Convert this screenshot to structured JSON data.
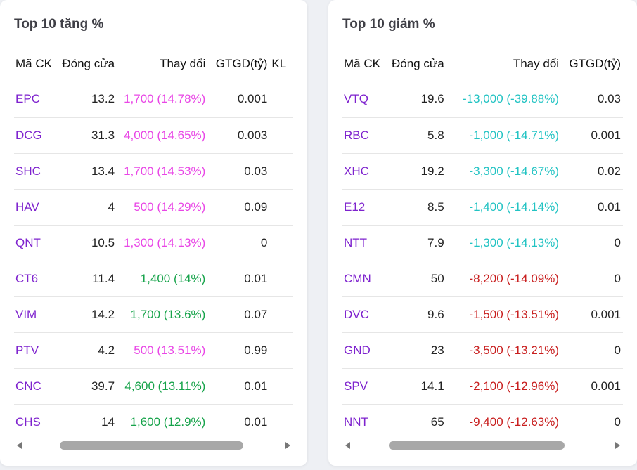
{
  "left_panel": {
    "title": "Top 10 tăng %",
    "headers": [
      "Mã CK",
      "Đóng cửa",
      "Thay đổi",
      "GTGD(tỷ)",
      "KL"
    ],
    "rows": [
      {
        "symbol": "EPC",
        "close": "13.2",
        "change": "1,700 (14.78%)",
        "value": "0.001",
        "status": "ceil"
      },
      {
        "symbol": "DCG",
        "close": "31.3",
        "change": "4,000 (14.65%)",
        "value": "0.003",
        "status": "ceil"
      },
      {
        "symbol": "SHC",
        "close": "13.4",
        "change": "1,700 (14.53%)",
        "value": "0.03",
        "status": "ceil"
      },
      {
        "symbol": "HAV",
        "close": "4",
        "change": "500 (14.29%)",
        "value": "0.09",
        "status": "ceil"
      },
      {
        "symbol": "QNT",
        "close": "10.5",
        "change": "1,300 (14.13%)",
        "value": "0",
        "status": "ceil"
      },
      {
        "symbol": "CT6",
        "close": "11.4",
        "change": "1,400 (14%)",
        "value": "0.01",
        "status": "up"
      },
      {
        "symbol": "VIM",
        "close": "14.2",
        "change": "1,700 (13.6%)",
        "value": "0.07",
        "status": "up"
      },
      {
        "symbol": "PTV",
        "close": "4.2",
        "change": "500 (13.51%)",
        "value": "0.99",
        "status": "ceil"
      },
      {
        "symbol": "CNC",
        "close": "39.7",
        "change": "4,600 (13.11%)",
        "value": "0.01",
        "status": "up"
      },
      {
        "symbol": "CHS",
        "close": "14",
        "change": "1,600 (12.9%)",
        "value": "0.01",
        "status": "up"
      }
    ]
  },
  "right_panel": {
    "title": "Top 10 giảm %",
    "headers": [
      "Mã CK",
      "Đóng cửa",
      "Thay đổi",
      "GTGD(tỷ)"
    ],
    "rows": [
      {
        "symbol": "VTQ",
        "close": "19.6",
        "change": "-13,000 (-39.88%)",
        "value": "0.03",
        "status": "floor"
      },
      {
        "symbol": "RBC",
        "close": "5.8",
        "change": "-1,000 (-14.71%)",
        "value": "0.001",
        "status": "floor"
      },
      {
        "symbol": "XHC",
        "close": "19.2",
        "change": "-3,300 (-14.67%)",
        "value": "0.02",
        "status": "floor"
      },
      {
        "symbol": "E12",
        "close": "8.5",
        "change": "-1,400 (-14.14%)",
        "value": "0.01",
        "status": "floor"
      },
      {
        "symbol": "NTT",
        "close": "7.9",
        "change": "-1,300 (-14.13%)",
        "value": "0",
        "status": "floor"
      },
      {
        "symbol": "CMN",
        "close": "50",
        "change": "-8,200 (-14.09%)",
        "value": "0",
        "status": "down"
      },
      {
        "symbol": "DVC",
        "close": "9.6",
        "change": "-1,500 (-13.51%)",
        "value": "0.001",
        "status": "down"
      },
      {
        "symbol": "GND",
        "close": "23",
        "change": "-3,500 (-13.21%)",
        "value": "0",
        "status": "down"
      },
      {
        "symbol": "SPV",
        "close": "14.1",
        "change": "-2,100 (-12.96%)",
        "value": "0.001",
        "status": "down"
      },
      {
        "symbol": "NNT",
        "close": "65",
        "change": "-9,400 (-12.63%)",
        "value": "0",
        "status": "down"
      }
    ]
  },
  "colors": {
    "symbol": "#7e22ce",
    "ceil": "#e946e6",
    "up": "#16a34a",
    "floor": "#22c3c3",
    "down": "#c81e1e"
  }
}
